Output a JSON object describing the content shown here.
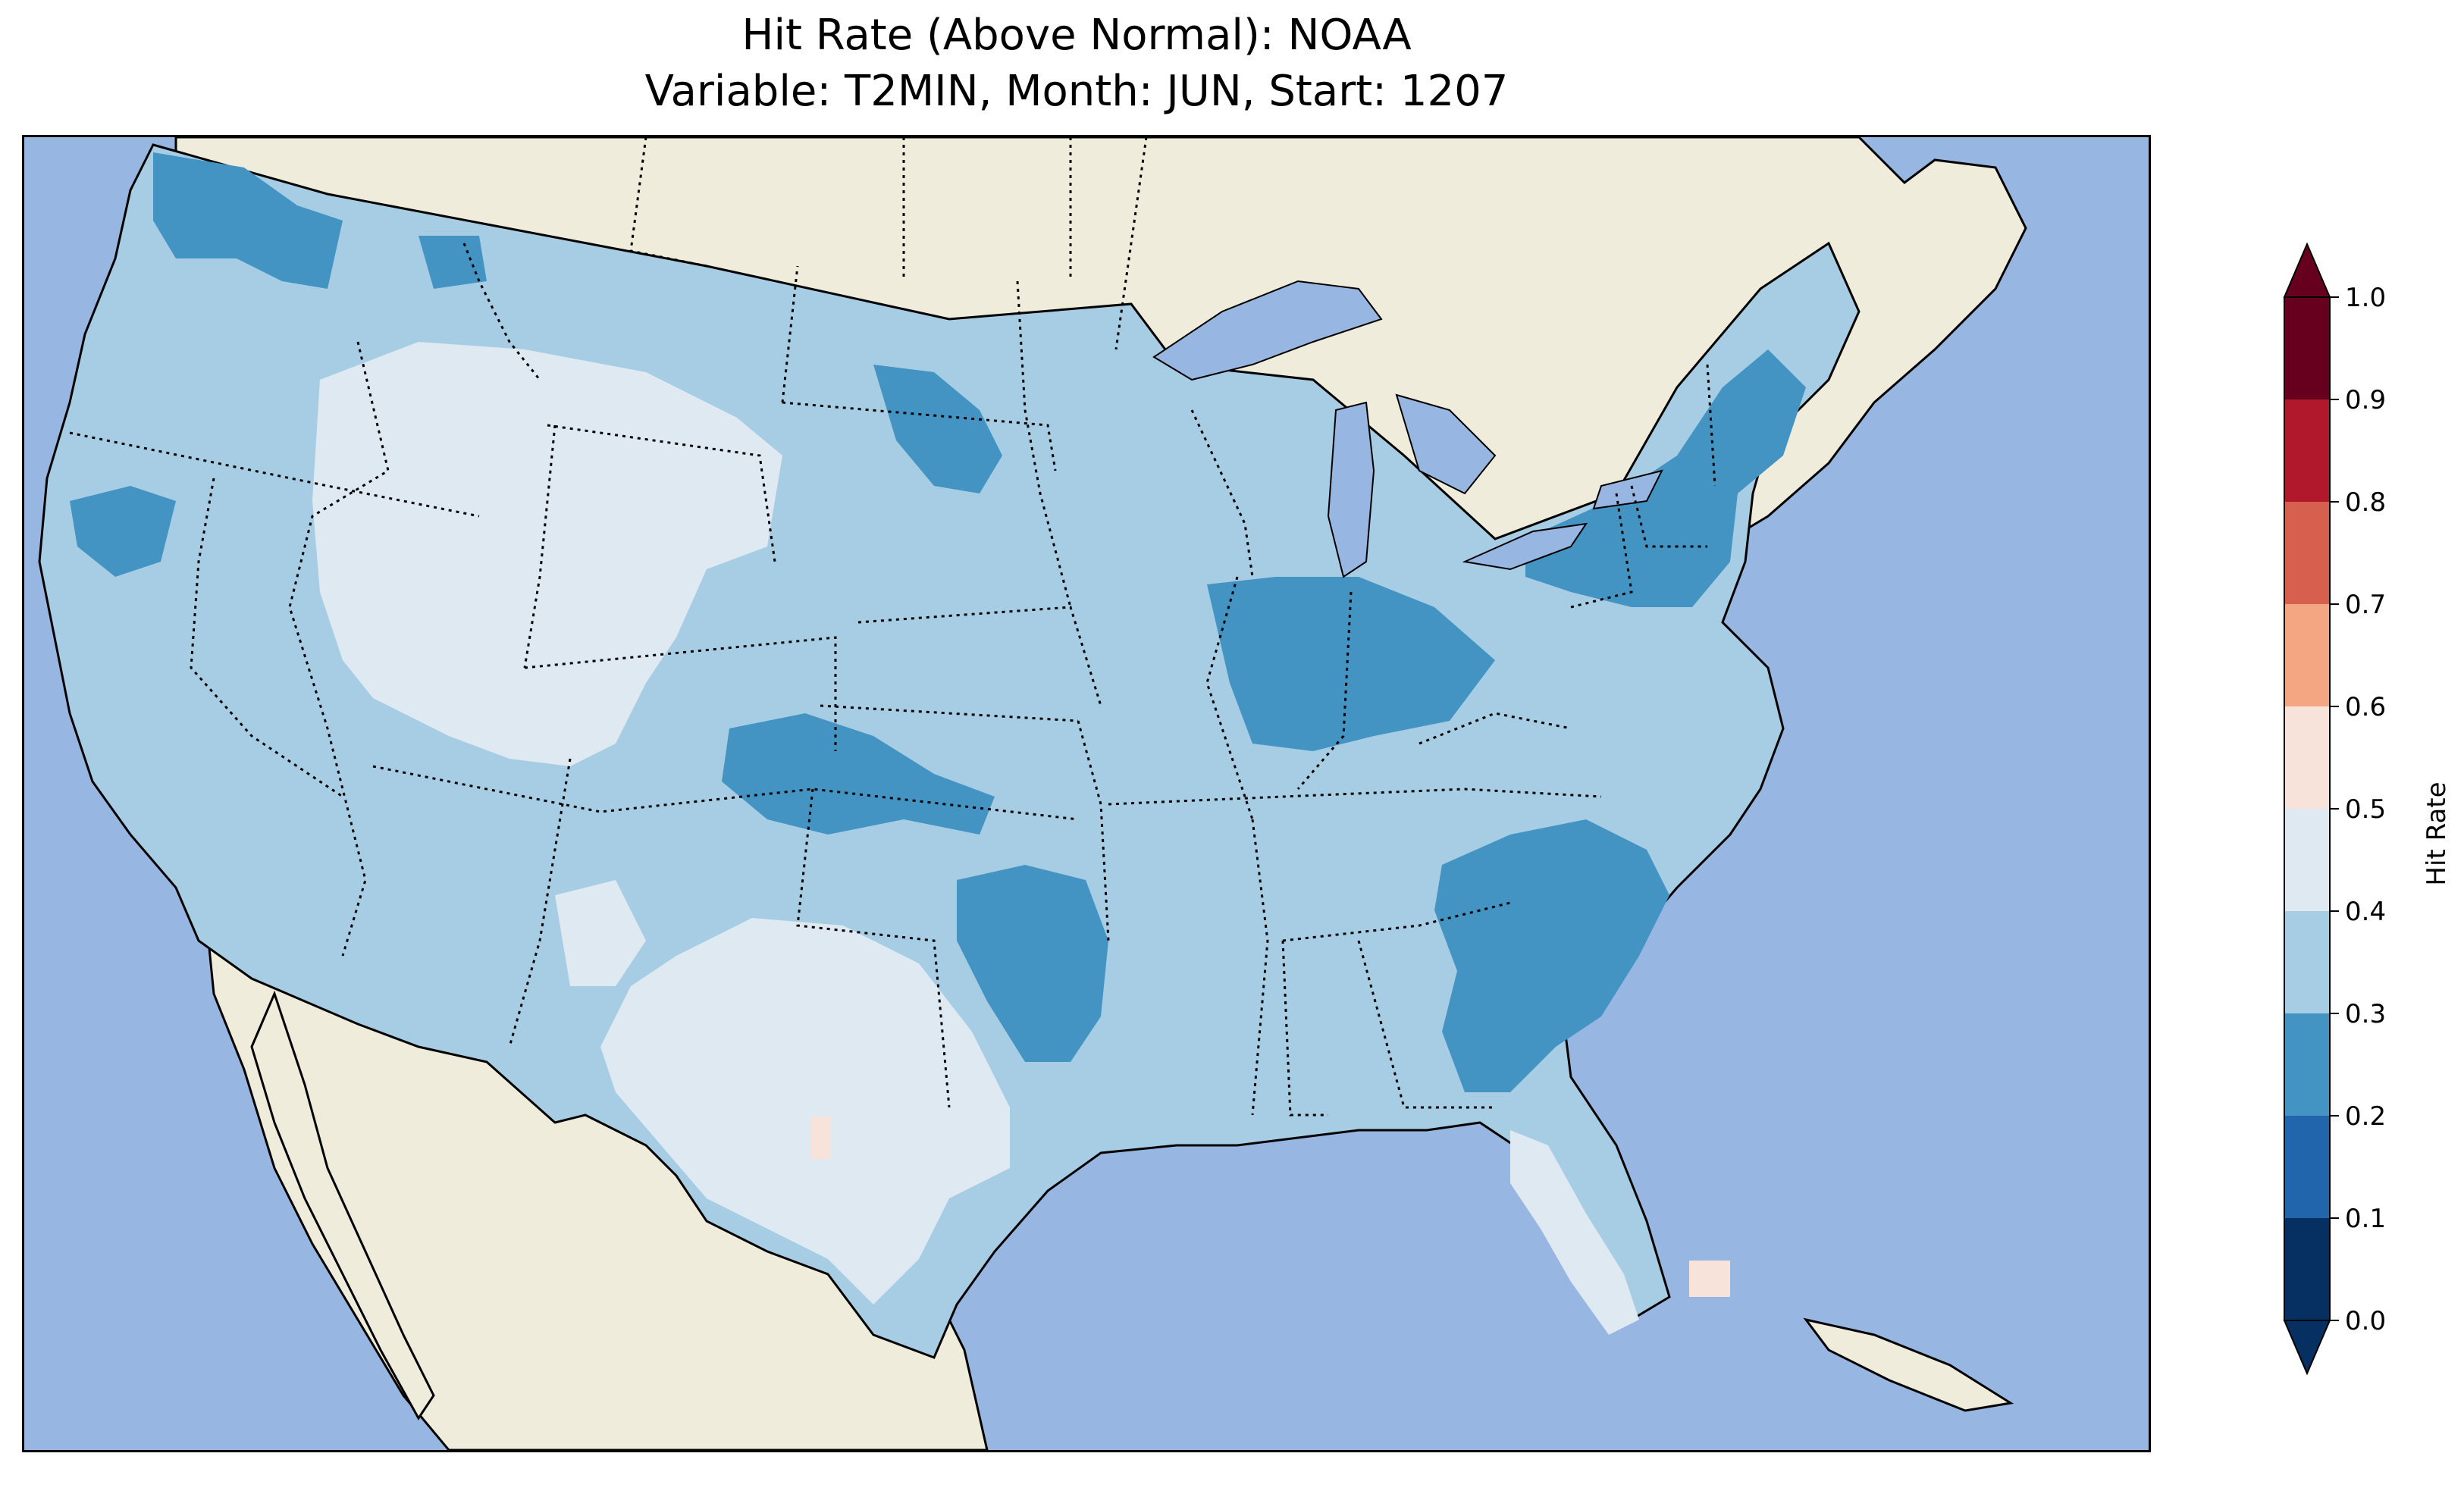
{
  "title": {
    "line1": "Hit Rate (Above Normal): NOAA",
    "line2": "Variable: T2MIN, Month: JUN, Start: 1207"
  },
  "colorbar": {
    "label": "Hit Rate",
    "extend": "both",
    "ticks": [
      "0.0",
      "0.1",
      "0.2",
      "0.3",
      "0.4",
      "0.5",
      "0.6",
      "0.7",
      "0.8",
      "0.9",
      "1.0"
    ],
    "bins": [
      {
        "range": [
          0.0,
          0.1
        ],
        "color": "#053061"
      },
      {
        "range": [
          0.1,
          0.2
        ],
        "color": "#2166ac"
      },
      {
        "range": [
          0.2,
          0.3
        ],
        "color": "#4393c3"
      },
      {
        "range": [
          0.3,
          0.4
        ],
        "color": "#a6cde3"
      },
      {
        "range": [
          0.4,
          0.5
        ],
        "color": "#dfe9f2"
      },
      {
        "range": [
          0.5,
          0.6
        ],
        "color": "#f7e3d9"
      },
      {
        "range": [
          0.6,
          0.7
        ],
        "color": "#f4a582"
      },
      {
        "range": [
          0.7,
          0.8
        ],
        "color": "#d6604d"
      },
      {
        "range": [
          0.8,
          0.9
        ],
        "color": "#b2182b"
      },
      {
        "range": [
          0.9,
          1.0
        ],
        "color": "#67001f"
      }
    ],
    "under_color": "#053061",
    "over_color": "#67001f"
  },
  "map": {
    "region": "Contiguous United States",
    "ocean_color": "#97b6e1",
    "land_color": "#efecdc",
    "dominant_hit_rate_bin": "0.3-0.4",
    "lower_hit_rate_areas_0.2_0.3": [
      "Washington",
      "Northeast",
      "Indiana",
      "Ohio",
      "Oklahoma",
      "South Carolina",
      "Georgia",
      "Colorado"
    ],
    "higher_hit_rate_areas_0.4_0.5": [
      "Wyoming",
      "Utah",
      "Idaho",
      "Texas",
      "Florida"
    ],
    "spots_0.5_0.6": [
      "Southern Florida",
      "West Texas"
    ]
  }
}
